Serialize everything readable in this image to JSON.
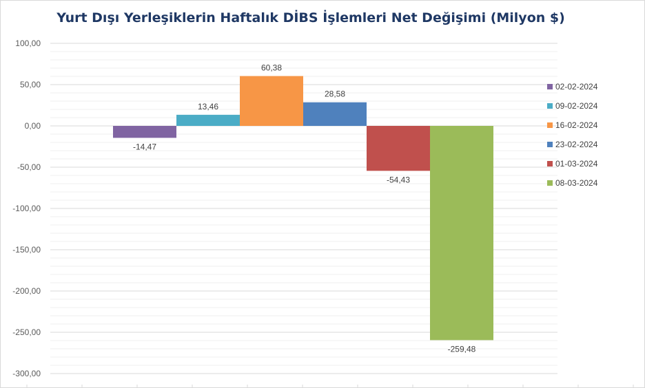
{
  "chart_data": {
    "type": "bar",
    "title": "Yurt Dışı Yerleşiklerin Haftalık DİBS İşlemleri Net Değişimi (Milyon $)",
    "xlabel": "",
    "ylabel": "",
    "ylim": [
      -300,
      100
    ],
    "y_ticks": [
      "100,00",
      "50,00",
      "0,00",
      "-50,00",
      "-100,00",
      "-150,00",
      "-200,00",
      "-250,00",
      "-300,00"
    ],
    "grid": true,
    "legend_position": "right",
    "series": [
      {
        "name": "02-02-2024",
        "value": -14.47,
        "label": "-14,47",
        "color": "#8064a2"
      },
      {
        "name": "09-02-2024",
        "value": 13.46,
        "label": "13,46",
        "color": "#4bacc6"
      },
      {
        "name": "16-02-2024",
        "value": 60.38,
        "label": "60,38",
        "color": "#f79646"
      },
      {
        "name": "23-02-2024",
        "value": 28.58,
        "label": "28,58",
        "color": "#4f81bd"
      },
      {
        "name": "01-03-2024",
        "value": -54.43,
        "label": "-54,43",
        "color": "#c0504d"
      },
      {
        "name": "08-03-2024",
        "value": -259.48,
        "label": "-259,48",
        "color": "#9bbb59"
      }
    ]
  }
}
